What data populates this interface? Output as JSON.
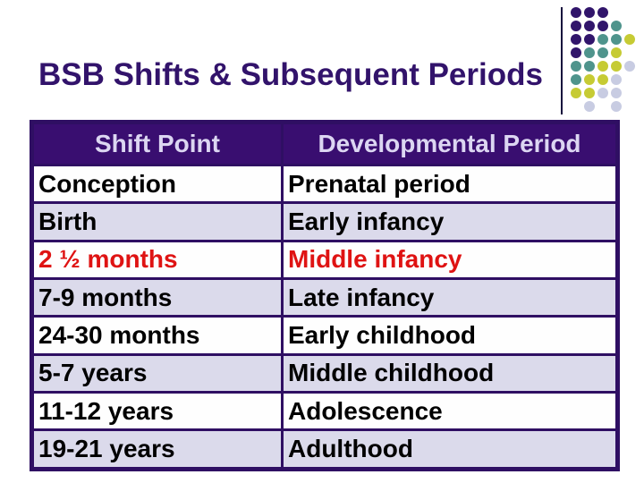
{
  "slide": {
    "title": "BSB Shifts & Subsequent Periods"
  },
  "table": {
    "columns": [
      "Shift Point",
      "Developmental Period"
    ],
    "rows": [
      {
        "shift_point": "Conception",
        "period": "Prenatal period",
        "highlight": false
      },
      {
        "shift_point": "Birth",
        "period": "Early infancy",
        "highlight": false
      },
      {
        "shift_point": "2 ½ months",
        "period": "Middle infancy",
        "highlight": true
      },
      {
        "shift_point": "7-9 months",
        "period": "Late infancy",
        "highlight": false
      },
      {
        "shift_point": "24-30 months",
        "period": "Early childhood",
        "highlight": false
      },
      {
        "shift_point": "5-7 years",
        "period": "Middle childhood",
        "highlight": false
      },
      {
        "shift_point": "11-12 years",
        "period": "Adolescence",
        "highlight": false
      },
      {
        "shift_point": "19-21 years",
        "period": "Adulthood",
        "highlight": false
      }
    ]
  },
  "colors": {
    "title_text": "#32136B",
    "table_border": "#2F0F63",
    "header_bg": "#390E70",
    "header_text": "#DCD6F2",
    "row_bg": "#FEFEFE",
    "row_alt_bg": "#DBDAEB",
    "highlight_text": "#DF1313",
    "body_text": "#000000",
    "dot_purple": "#31156B",
    "dot_teal": "#4F948C",
    "dot_yellow": "#C6CB34",
    "dot_lavender": "#C8CCE2"
  },
  "decoration": {
    "dot_grid": [
      [
        "purple",
        "purple",
        "purple",
        null,
        null
      ],
      [
        "purple",
        "purple",
        "purple",
        "teal",
        null
      ],
      [
        "purple",
        "purple",
        "teal",
        "teal",
        "yellow"
      ],
      [
        "purple",
        "teal",
        "teal",
        "yellow",
        null
      ],
      [
        "teal",
        "teal",
        "yellow",
        "yellow",
        "lavender"
      ],
      [
        "teal",
        "yellow",
        "yellow",
        "lavender",
        null
      ],
      [
        "yellow",
        "yellow",
        "lavender",
        "lavender",
        null
      ],
      [
        null,
        "lavender",
        null,
        "lavender",
        null
      ]
    ]
  }
}
